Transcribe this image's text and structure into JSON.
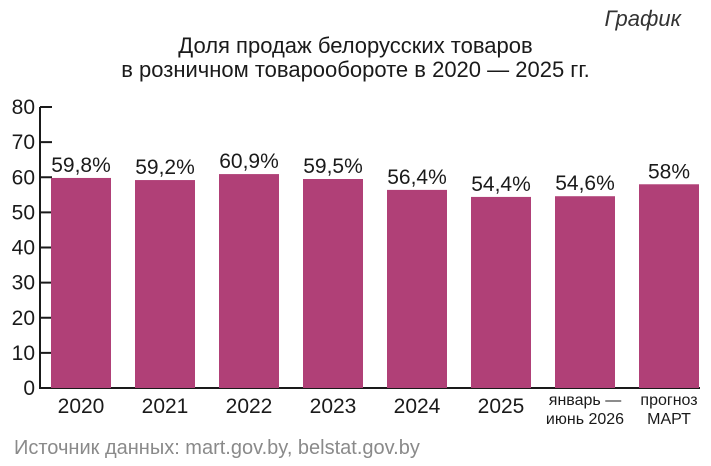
{
  "tag": "График",
  "source": "Источник данных: mart.gov.by, belstat.gov.by",
  "chart_data": {
    "type": "bar",
    "title": [
      "Доля продаж белорусских товаров",
      "в розничном товарообороте в 2020 — 2025 гг."
    ],
    "categories": [
      [
        "2020"
      ],
      [
        "2021"
      ],
      [
        "2022"
      ],
      [
        "2023"
      ],
      [
        "2024"
      ],
      [
        "2025"
      ],
      [
        "январь —",
        "июнь 2026"
      ],
      [
        "прогноз",
        "МАРТ"
      ]
    ],
    "values": [
      59.8,
      59.2,
      60.9,
      59.5,
      56.4,
      54.4,
      54.6,
      58
    ],
    "value_labels": [
      "59,8%",
      "59,2%",
      "60,9%",
      "59,5%",
      "56,4%",
      "54,4%",
      "54,6%",
      "58%"
    ],
    "y_ticks": [
      0,
      10,
      20,
      30,
      40,
      50,
      60,
      70,
      80
    ],
    "ylim": [
      0,
      80
    ],
    "grid": false,
    "bar_color": "#b04077",
    "axis_color": "#1a1a1a"
  }
}
